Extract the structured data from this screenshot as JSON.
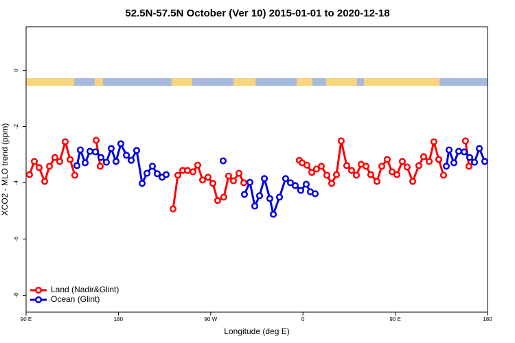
{
  "chart_data": {
    "type": "line",
    "title": "52.5N-57.5N October (Ver 10)   2015-01-01 to 2020-12-18",
    "x_label": "Longitude (deg E)",
    "y_label": "XCO2 - MLO trend (ppm)",
    "xlim": [
      90,
      540
    ],
    "xticks": [
      {
        "value": 90,
        "label": "90 E"
      },
      180,
      {
        "value": 270,
        "label": "90 W"
      },
      {
        "value": 360,
        "label": "0"
      },
      {
        "value": 450,
        "label": "90 E"
      },
      {
        "value": 540,
        "label": "180"
      }
    ],
    "ylim": [
      -8.6,
      1.55
    ],
    "yticks": [
      0,
      -2,
      -4,
      -6,
      -8
    ],
    "legend": "bottom-left",
    "series": [
      {
        "name": "Land (Nadir&Glint)",
        "color": "#ff0000",
        "x": [
          93.3,
          98.0,
          102.7,
          108.1,
          112.8,
          118.1,
          122.8,
          128.2,
          132.9,
          137.5,
          null,
          158.3,
          162.3,
          null,
          233.3,
          238.0,
          242.7,
          247.4,
          252.7,
          257.4,
          262.1,
          267.4,
          272.1,
          276.8,
          282.8,
          287.5,
          292.2,
          297.6,
          302.3,
          null,
          356.5,
          359.2,
          363.9,
          368.6,
          373.2,
          377.9,
          383.3,
          388.0,
          392.7,
          397.3,
          402.7,
          407.4,
          412.1,
          416.8,
          421.5,
          426.1,
          432.2,
          436.9,
          442.2,
          446.9,
          451.6,
          456.9,
          461.6,
          467.0,
          473.0,
          477.7,
          483.1,
          487.7,
          492.4,
          497.1,
          null,
          518.5,
          521.9
        ],
        "values": [
          -3.71,
          -3.24,
          -3.46,
          -3.95,
          -3.41,
          -3.1,
          -3.24,
          -2.54,
          -3.17,
          -3.73,
          null,
          -2.49,
          -3.41,
          null,
          -4.93,
          -3.73,
          -3.56,
          -3.56,
          -3.61,
          -3.37,
          -3.9,
          -3.8,
          -4.02,
          -4.63,
          -4.51,
          -3.76,
          -3.93,
          -3.66,
          -4.0,
          null,
          -3.2,
          -3.29,
          -3.37,
          -3.63,
          -3.51,
          -3.41,
          -3.73,
          -4.02,
          -3.71,
          -2.51,
          -3.39,
          -3.56,
          -3.73,
          -3.34,
          -3.41,
          -3.71,
          -3.95,
          -3.41,
          -3.17,
          -3.61,
          -3.71,
          -3.24,
          -3.44,
          -3.95,
          -3.39,
          -3.07,
          -3.24,
          -2.54,
          -3.17,
          -3.73,
          null,
          -2.51,
          -3.41
        ]
      },
      {
        "name": "Ocean (Glint)",
        "color": "#0000e0",
        "x": [
          139.6,
          142.9,
          147.6,
          152.3,
          157.6,
          163.0,
          168.3,
          173.0,
          177.7,
          182.4,
          187.8,
          192.5,
          197.8,
          203.2,
          207.9,
          213.2,
          217.9,
          222.6,
          226.6,
          null,
          282.2,
          null,
          302.9,
          308.3,
          313.0,
          317.7,
          322.4,
          327.7,
          331.1,
          337.1,
          343.1,
          347.8,
          352.5,
          357.8,
          363.2,
          367.2,
          371.9,
          null,
          499.8,
          502.5,
          507.2,
          511.9,
          517.2,
          522.6,
          527.3,
          532.0,
          537.3
        ],
        "values": [
          -3.39,
          -2.83,
          -3.29,
          -2.88,
          -2.9,
          -3.1,
          -3.27,
          -2.78,
          -3.24,
          -2.61,
          -3.02,
          -3.2,
          -2.85,
          -4.02,
          -3.66,
          -3.41,
          -3.68,
          -3.8,
          -3.71,
          null,
          -3.22,
          null,
          -4.41,
          -3.98,
          -4.83,
          -4.46,
          -3.85,
          -4.56,
          -5.12,
          -4.51,
          -3.85,
          -4.0,
          -4.1,
          -4.27,
          -4.05,
          -4.32,
          -4.39,
          null,
          -3.41,
          -2.83,
          -3.29,
          -2.88,
          -2.9,
          -3.1,
          -3.27,
          -2.78,
          -3.24
        ]
      }
    ]
  }
}
